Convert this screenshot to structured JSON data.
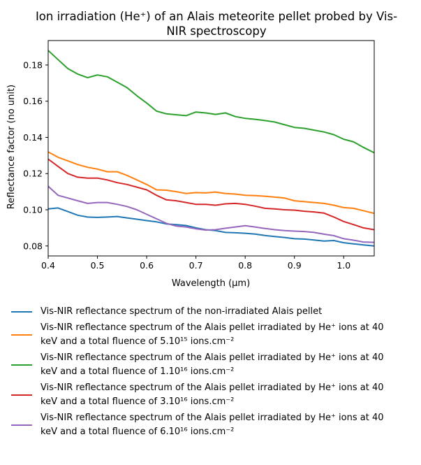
{
  "chart_data": {
    "type": "line",
    "title": "Ion irradiation (He⁺) of an Alais meteorite pellet probed by Vis-NIR spectroscopy",
    "title_lines": [
      "Ion irradiation (He⁺) of an Alais meteorite pellet probed by Vis-",
      "NIR spectroscopy"
    ],
    "xlabel": "Wavelength (μm)",
    "ylabel": "Reflectance factor (no unit)",
    "xlim": [
      0.4,
      1.062
    ],
    "ylim": [
      0.0745,
      0.1935
    ],
    "xticks": [
      "0.4",
      "0.5",
      "0.6",
      "0.7",
      "0.8",
      "0.9",
      "1.0"
    ],
    "yticks": [
      "0.08",
      "0.10",
      "0.12",
      "0.14",
      "0.16",
      "0.18"
    ],
    "grid": false,
    "legend_position": "below",
    "series": [
      {
        "name": "Vis-NIR reflectance spectrum of the non-irradiated Alais pellet",
        "color": "#1f77b4",
        "x": [
          0.4,
          0.42,
          0.44,
          0.46,
          0.48,
          0.5,
          0.52,
          0.54,
          0.56,
          0.58,
          0.6,
          0.62,
          0.64,
          0.66,
          0.68,
          0.7,
          0.72,
          0.74,
          0.76,
          0.78,
          0.8,
          0.82,
          0.84,
          0.86,
          0.88,
          0.9,
          0.92,
          0.94,
          0.96,
          0.98,
          1.0,
          1.02,
          1.04,
          1.062
        ],
        "y": [
          0.1005,
          0.101,
          0.099,
          0.097,
          0.096,
          0.0958,
          0.096,
          0.0963,
          0.0955,
          0.0948,
          0.094,
          0.0933,
          0.0922,
          0.0918,
          0.0913,
          0.09,
          0.089,
          0.0885,
          0.0875,
          0.0873,
          0.087,
          0.0866,
          0.0858,
          0.0852,
          0.0847,
          0.084,
          0.0838,
          0.0833,
          0.0827,
          0.083,
          0.0818,
          0.0812,
          0.0806,
          0.08
        ]
      },
      {
        "name": "Vis-NIR reflectance spectrum of the Alais pellet irradiated by He⁺ ions at 40 keV and a total fluence of 5.10¹⁵ ions.cm⁻²",
        "legend_line1": "Vis-NIR reflectance spectrum of the Alais pellet irradiated by He⁺ ions at 40",
        "legend_line2": "keV and a total fluence of 5.10¹⁵ ions.cm⁻²",
        "color": "#ff7f0e",
        "x": [
          0.4,
          0.42,
          0.44,
          0.46,
          0.48,
          0.5,
          0.52,
          0.54,
          0.56,
          0.58,
          0.6,
          0.62,
          0.64,
          0.66,
          0.68,
          0.7,
          0.72,
          0.74,
          0.76,
          0.78,
          0.8,
          0.82,
          0.84,
          0.86,
          0.88,
          0.9,
          0.92,
          0.94,
          0.96,
          0.98,
          1.0,
          1.02,
          1.04,
          1.062
        ],
        "y": [
          0.132,
          0.129,
          0.127,
          0.125,
          0.1235,
          0.1225,
          0.121,
          0.121,
          0.119,
          0.1165,
          0.114,
          0.111,
          0.1108,
          0.11,
          0.109,
          0.1095,
          0.1093,
          0.1098,
          0.109,
          0.1087,
          0.108,
          0.1078,
          0.1075,
          0.107,
          0.1065,
          0.105,
          0.1045,
          0.104,
          0.1035,
          0.1025,
          0.1012,
          0.1008,
          0.0995,
          0.098
        ]
      },
      {
        "name": "Vis-NIR reflectance spectrum of the Alais pellet irradiated by He⁺ ions at 40 keV and a total fluence of 1.10¹⁶ ions.cm⁻²",
        "legend_line1": "Vis-NIR reflectance spectrum of the Alais pellet irradiated by He⁺ ions at 40",
        "legend_line2": "keV and a total fluence of 1.10¹⁶ ions.cm⁻²",
        "color": "#2ca02c",
        "x": [
          0.4,
          0.42,
          0.44,
          0.46,
          0.48,
          0.5,
          0.52,
          0.54,
          0.56,
          0.58,
          0.6,
          0.62,
          0.64,
          0.66,
          0.68,
          0.7,
          0.72,
          0.74,
          0.76,
          0.78,
          0.8,
          0.82,
          0.84,
          0.86,
          0.88,
          0.9,
          0.92,
          0.94,
          0.96,
          0.98,
          1.0,
          1.02,
          1.04,
          1.062
        ],
        "y": [
          0.188,
          0.183,
          0.178,
          0.175,
          0.173,
          0.1745,
          0.1735,
          0.1705,
          0.1675,
          0.163,
          0.159,
          0.1545,
          0.153,
          0.1525,
          0.152,
          0.154,
          0.1535,
          0.1527,
          0.1535,
          0.1515,
          0.1505,
          0.15,
          0.1493,
          0.1485,
          0.147,
          0.1455,
          0.145,
          0.144,
          0.143,
          0.1415,
          0.139,
          0.1375,
          0.1345,
          0.1315
        ]
      },
      {
        "name": "Vis-NIR reflectance spectrum of the Alais pellet irradiated by He⁺ ions at 40 keV and a total fluence of 3.10¹⁶ ions.cm⁻²",
        "legend_line1": "Vis-NIR reflectance spectrum of the Alais pellet irradiated by He⁺ ions at 40",
        "legend_line2": "keV and a total fluence of 3.10¹⁶ ions.cm⁻²",
        "color": "#d62728",
        "x": [
          0.4,
          0.42,
          0.44,
          0.46,
          0.48,
          0.5,
          0.52,
          0.54,
          0.56,
          0.58,
          0.6,
          0.62,
          0.64,
          0.66,
          0.68,
          0.7,
          0.72,
          0.74,
          0.76,
          0.78,
          0.8,
          0.82,
          0.84,
          0.86,
          0.88,
          0.9,
          0.92,
          0.94,
          0.96,
          0.98,
          1.0,
          1.02,
          1.04,
          1.062
        ],
        "y": [
          0.128,
          0.124,
          0.12,
          0.118,
          0.1175,
          0.1175,
          0.1165,
          0.115,
          0.114,
          0.1125,
          0.111,
          0.108,
          0.1055,
          0.105,
          0.104,
          0.103,
          0.103,
          0.1025,
          0.1033,
          0.1035,
          0.103,
          0.102,
          0.1008,
          0.1005,
          0.1,
          0.0998,
          0.0992,
          0.0988,
          0.0982,
          0.096,
          0.0935,
          0.0918,
          0.09,
          0.089
        ]
      },
      {
        "name": "Vis-NIR reflectance spectrum of the Alais pellet irradiated by He⁺ ions at 40 keV and a total fluence of 6.10¹⁶ ions.cm⁻²",
        "legend_line1": "Vis-NIR reflectance spectrum of the Alais pellet irradiated by He⁺ ions at 40",
        "legend_line2": "keV and a total fluence of 6.10¹⁶ ions.cm⁻²",
        "color": "#9467bd",
        "x": [
          0.4,
          0.42,
          0.44,
          0.46,
          0.48,
          0.5,
          0.52,
          0.54,
          0.56,
          0.58,
          0.6,
          0.62,
          0.64,
          0.66,
          0.68,
          0.7,
          0.72,
          0.74,
          0.76,
          0.78,
          0.8,
          0.82,
          0.84,
          0.86,
          0.88,
          0.9,
          0.92,
          0.94,
          0.96,
          0.98,
          1.0,
          1.02,
          1.04,
          1.062
        ],
        "y": [
          0.113,
          0.108,
          0.1065,
          0.105,
          0.1035,
          0.104,
          0.104,
          0.103,
          0.1018,
          0.1,
          0.0975,
          0.095,
          0.0925,
          0.091,
          0.0905,
          0.0895,
          0.0888,
          0.089,
          0.0898,
          0.0905,
          0.0912,
          0.0905,
          0.0897,
          0.089,
          0.0885,
          0.0882,
          0.088,
          0.0875,
          0.0865,
          0.0857,
          0.084,
          0.0832,
          0.0822,
          0.082
        ]
      }
    ]
  }
}
